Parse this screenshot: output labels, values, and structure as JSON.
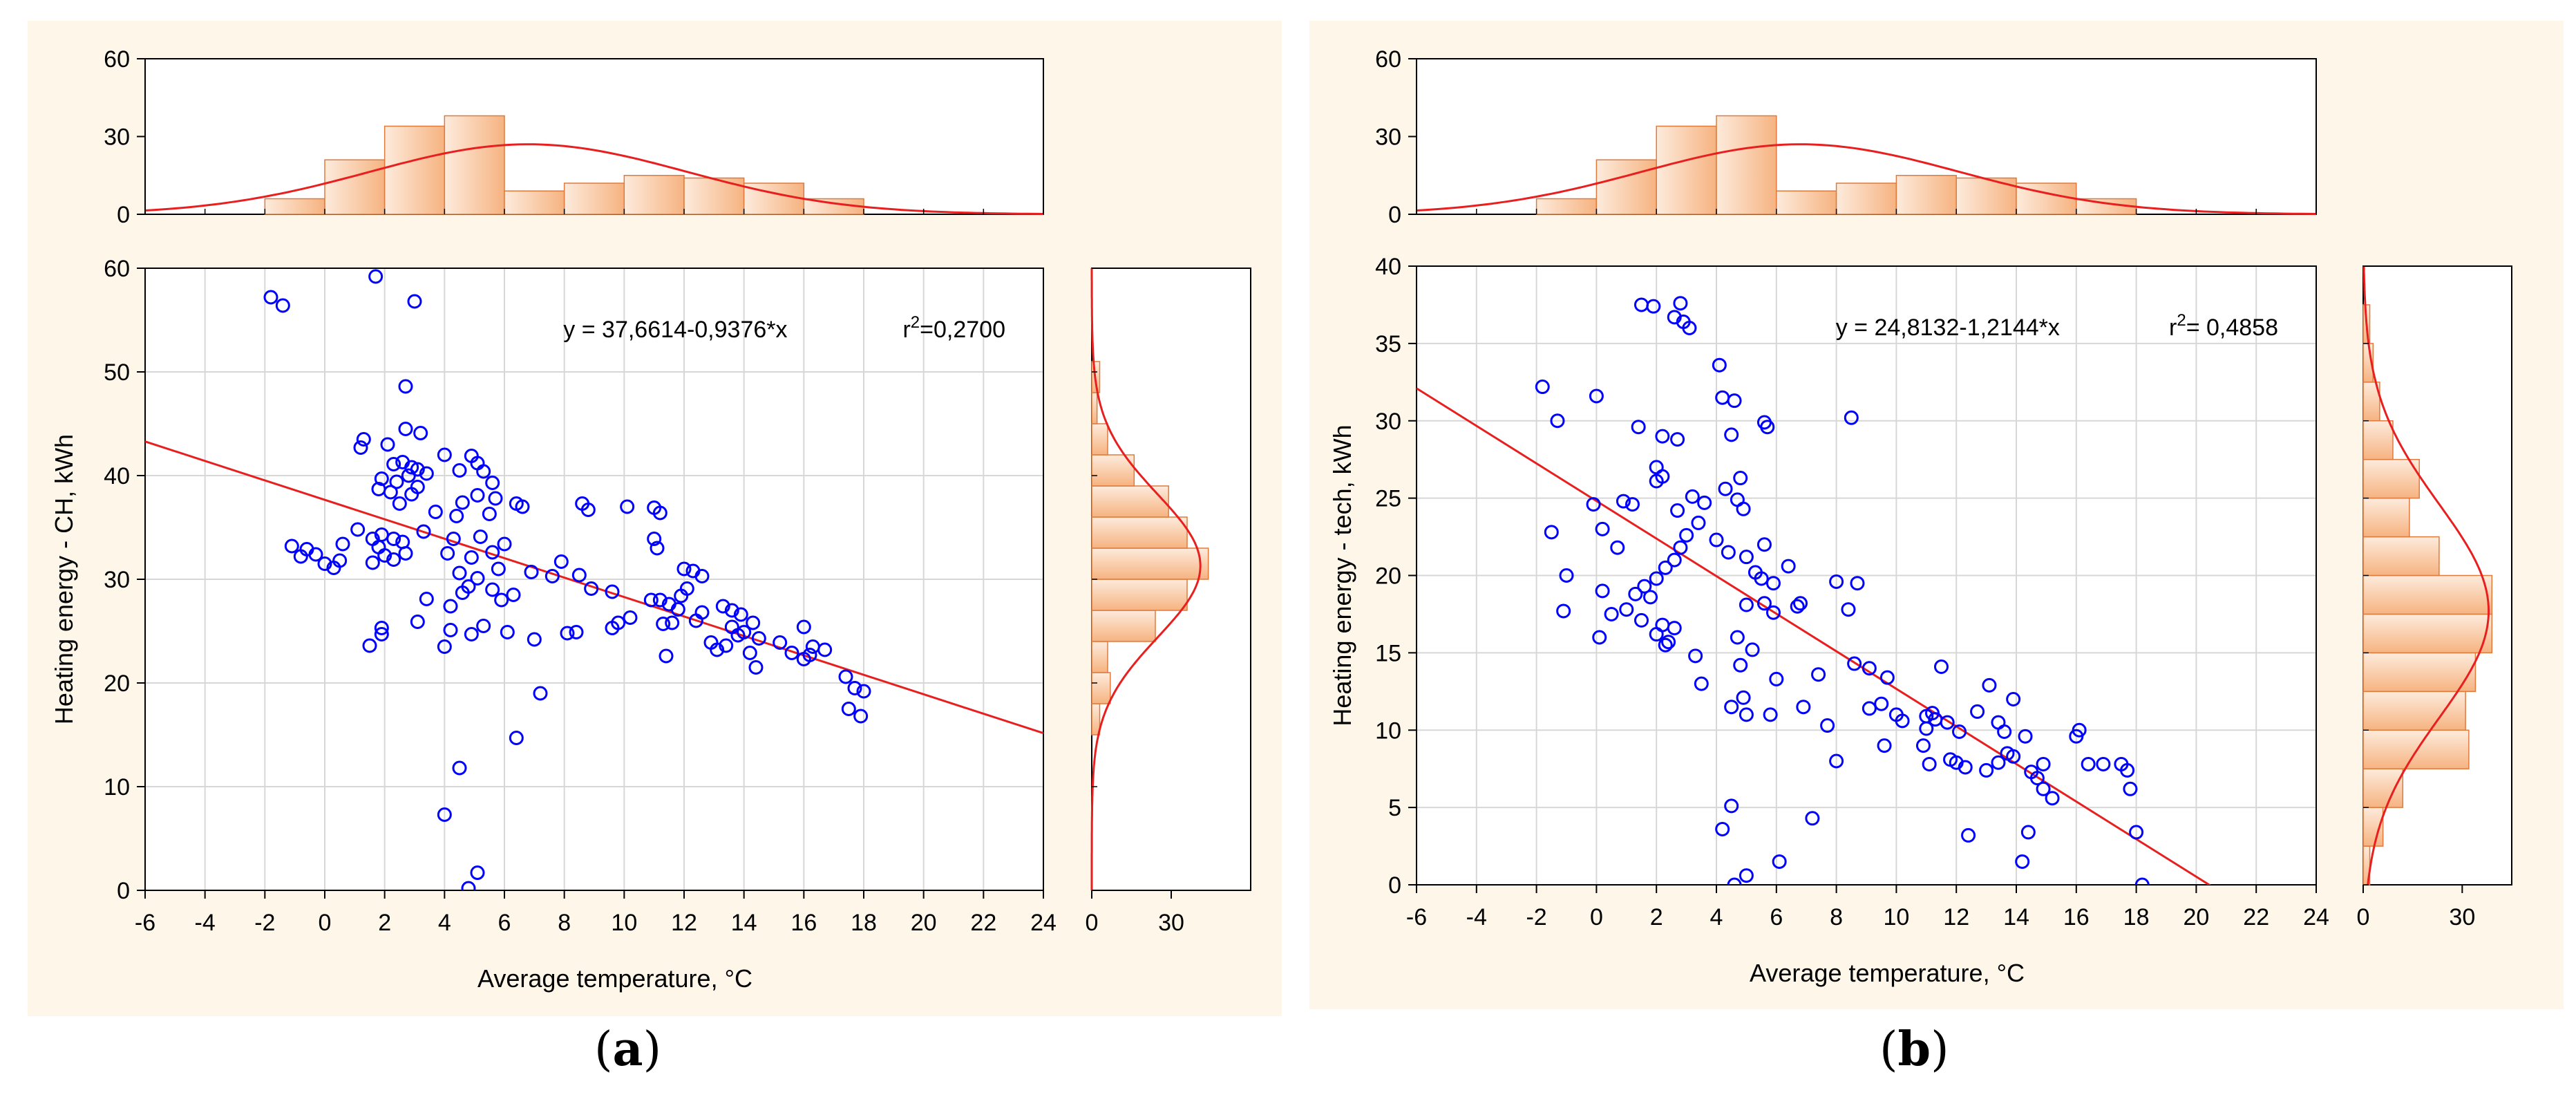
{
  "captions": [
    {
      "open": "(",
      "letter": "a",
      "close": ")"
    },
    {
      "open": "(",
      "letter": "b",
      "close": ")"
    }
  ],
  "colors": {
    "panel_background": "#FDF6E9",
    "plot_background": "#FFFFFF",
    "grid": "#D7D7D7",
    "points": "#0000FF",
    "fit_line": "#E81F1F",
    "histogram_fill": "#F6B381",
    "histogram_edge": "#E07A3C",
    "normal_curve": "#E81F1F"
  },
  "chart_data": [
    {
      "type": "scatter",
      "title": "(a)",
      "xlabel": "Average temperature, °C",
      "ylabel": "Heating energy - CH, kWh",
      "xlim": [
        -6,
        24
      ],
      "ylim": [
        0,
        60
      ],
      "xticks": [
        -6,
        -4,
        -2,
        0,
        2,
        4,
        6,
        8,
        10,
        12,
        14,
        16,
        18,
        20,
        22,
        24
      ],
      "yticks": [
        0,
        10,
        20,
        30,
        40,
        50,
        60
      ],
      "grid": true,
      "equation": "y = 37,6614-0,9376*x",
      "r2_label": "r",
      "r2_exp": "2",
      "r2_value": "=0,2700",
      "regression": {
        "intercept": 37.6614,
        "slope": -0.9376
      },
      "points": [
        [
          -1.8,
          57.2
        ],
        [
          -1.4,
          56.4
        ],
        [
          1.7,
          59.2
        ],
        [
          3.0,
          56.8
        ],
        [
          2.7,
          48.6
        ],
        [
          2.7,
          44.5
        ],
        [
          3.2,
          44.1
        ],
        [
          1.3,
          43.5
        ],
        [
          1.2,
          42.7
        ],
        [
          2.1,
          43.0
        ],
        [
          2.6,
          41.3
        ],
        [
          2.3,
          41.1
        ],
        [
          2.9,
          40.8
        ],
        [
          3.1,
          40.6
        ],
        [
          3.4,
          40.2
        ],
        [
          2.8,
          40.0
        ],
        [
          1.9,
          39.7
        ],
        [
          2.4,
          39.4
        ],
        [
          1.8,
          38.7
        ],
        [
          2.2,
          38.4
        ],
        [
          3.1,
          38.9
        ],
        [
          2.9,
          38.2
        ],
        [
          2.5,
          37.3
        ],
        [
          4.0,
          42.0
        ],
        [
          4.5,
          40.5
        ],
        [
          4.9,
          41.9
        ],
        [
          5.1,
          41.2
        ],
        [
          5.3,
          40.4
        ],
        [
          5.6,
          39.3
        ],
        [
          5.1,
          38.1
        ],
        [
          4.6,
          37.4
        ],
        [
          4.4,
          36.1
        ],
        [
          3.7,
          36.5
        ],
        [
          5.5,
          36.3
        ],
        [
          5.7,
          37.8
        ],
        [
          6.4,
          37.3
        ],
        [
          6.6,
          37.0
        ],
        [
          8.6,
          37.3
        ],
        [
          8.8,
          36.7
        ],
        [
          10.1,
          37.0
        ],
        [
          11.0,
          36.9
        ],
        [
          11.2,
          36.4
        ],
        [
          11.0,
          33.9
        ],
        [
          11.1,
          33.0
        ],
        [
          12.0,
          31.0
        ],
        [
          12.3,
          30.8
        ],
        [
          12.6,
          30.3
        ],
        [
          12.1,
          29.1
        ],
        [
          11.9,
          28.4
        ],
        [
          10.9,
          28.0
        ],
        [
          11.2,
          28.0
        ],
        [
          11.5,
          27.6
        ],
        [
          11.8,
          27.1
        ],
        [
          11.3,
          25.7
        ],
        [
          11.6,
          25.8
        ],
        [
          11.4,
          22.6
        ],
        [
          12.6,
          26.8
        ],
        [
          12.4,
          26.0
        ],
        [
          13.3,
          27.4
        ],
        [
          13.6,
          27.0
        ],
        [
          13.9,
          26.6
        ],
        [
          14.3,
          25.8
        ],
        [
          13.6,
          25.4
        ],
        [
          14.0,
          24.9
        ],
        [
          13.8,
          24.6
        ],
        [
          14.5,
          24.3
        ],
        [
          13.4,
          23.6
        ],
        [
          12.9,
          23.9
        ],
        [
          13.1,
          23.2
        ],
        [
          14.2,
          22.9
        ],
        [
          14.4,
          21.5
        ],
        [
          15.2,
          23.9
        ],
        [
          15.6,
          22.9
        ],
        [
          16.0,
          22.3
        ],
        [
          16.2,
          22.7
        ],
        [
          16.0,
          25.4
        ],
        [
          16.3,
          23.5
        ],
        [
          16.7,
          23.2
        ],
        [
          17.4,
          20.6
        ],
        [
          17.7,
          19.5
        ],
        [
          18.0,
          19.2
        ],
        [
          17.5,
          17.5
        ],
        [
          17.9,
          16.8
        ],
        [
          -1.1,
          33.2
        ],
        [
          -0.6,
          32.9
        ],
        [
          -0.8,
          32.2
        ],
        [
          -0.3,
          32.4
        ],
        [
          0.0,
          31.5
        ],
        [
          0.3,
          31.1
        ],
        [
          0.5,
          31.8
        ],
        [
          0.6,
          33.4
        ],
        [
          1.1,
          34.8
        ],
        [
          1.6,
          33.9
        ],
        [
          1.9,
          34.3
        ],
        [
          2.3,
          33.9
        ],
        [
          2.6,
          33.6
        ],
        [
          2.0,
          32.3
        ],
        [
          1.6,
          31.6
        ],
        [
          2.3,
          31.9
        ],
        [
          1.8,
          33.1
        ],
        [
          2.7,
          32.5
        ],
        [
          3.3,
          34.6
        ],
        [
          4.3,
          33.9
        ],
        [
          5.2,
          34.1
        ],
        [
          4.1,
          32.5
        ],
        [
          4.9,
          32.1
        ],
        [
          5.6,
          32.6
        ],
        [
          4.5,
          30.6
        ],
        [
          5.1,
          30.1
        ],
        [
          4.8,
          29.3
        ],
        [
          5.8,
          31.0
        ],
        [
          6.0,
          33.4
        ],
        [
          3.4,
          28.1
        ],
        [
          4.2,
          27.4
        ],
        [
          4.6,
          28.7
        ],
        [
          5.6,
          29.0
        ],
        [
          5.9,
          28.0
        ],
        [
          6.3,
          28.5
        ],
        [
          6.9,
          30.7
        ],
        [
          7.6,
          30.3
        ],
        [
          7.9,
          31.7
        ],
        [
          8.5,
          30.4
        ],
        [
          8.9,
          29.1
        ],
        [
          9.6,
          28.8
        ],
        [
          10.2,
          26.3
        ],
        [
          9.8,
          25.8
        ],
        [
          9.6,
          25.3
        ],
        [
          8.1,
          24.8
        ],
        [
          8.4,
          24.9
        ],
        [
          7.0,
          24.2
        ],
        [
          6.1,
          24.9
        ],
        [
          4.2,
          25.1
        ],
        [
          4.9,
          24.7
        ],
        [
          5.3,
          25.5
        ],
        [
          4.0,
          23.5
        ],
        [
          3.1,
          25.9
        ],
        [
          1.9,
          24.7
        ],
        [
          1.9,
          25.3
        ],
        [
          1.5,
          23.6
        ],
        [
          6.4,
          14.7
        ],
        [
          7.2,
          19.0
        ],
        [
          4.5,
          11.8
        ],
        [
          4.0,
          7.3
        ],
        [
          5.1,
          1.7
        ],
        [
          4.8,
          0.2
        ]
      ]
    },
    {
      "type": "histogram",
      "role": "top-marginal",
      "xlim": [
        -6,
        24
      ],
      "ylim": [
        0,
        60
      ],
      "yticks": [
        0,
        30,
        60
      ],
      "bin_edges": [
        -2,
        0,
        2,
        4,
        6,
        8,
        10,
        12,
        14,
        16,
        18
      ],
      "counts": [
        6,
        21,
        34,
        38,
        9,
        12,
        15,
        14,
        12,
        6
      ],
      "normal_curve": {
        "mean": 6.8,
        "sd": 5.3,
        "peak": 27
      }
    },
    {
      "type": "histogram",
      "role": "right-marginal",
      "orientation": "horizontal",
      "ylim": [
        0,
        60
      ],
      "xlim": [
        0,
        60
      ],
      "xticks": [
        0,
        30
      ],
      "bin_edges": [
        15,
        18,
        21,
        24,
        27,
        30,
        33,
        36,
        39,
        42,
        45,
        48,
        51
      ],
      "counts": [
        3,
        7,
        6,
        24,
        36,
        44,
        36,
        29,
        16,
        6,
        2,
        3
      ],
      "normal_curve": {
        "mean": 31.3,
        "sd": 6.9,
        "peak": 41
      }
    },
    {
      "type": "scatter",
      "title": "(b)",
      "xlabel": "Average temperature, °C",
      "ylabel": "Heating energy - tech, kWh",
      "xlim": [
        -6,
        24
      ],
      "ylim": [
        0,
        40
      ],
      "xticks": [
        -6,
        -4,
        -2,
        0,
        2,
        4,
        6,
        8,
        10,
        12,
        14,
        16,
        18,
        20,
        22,
        24
      ],
      "yticks": [
        0,
        5,
        10,
        15,
        20,
        25,
        30,
        35,
        40
      ],
      "grid": true,
      "equation": "y = 24,8132-1,2144*x",
      "r2_label": "r",
      "r2_exp": "2",
      "r2_value": "= 0,4858",
      "regression": {
        "intercept": 24.8132,
        "slope": -1.2144
      },
      "points": [
        [
          -1.8,
          32.2
        ],
        [
          -1.3,
          30.0
        ],
        [
          0.0,
          31.6
        ],
        [
          1.4,
          29.6
        ],
        [
          2.0,
          27.0
        ],
        [
          2.2,
          26.4
        ],
        [
          2.0,
          26.1
        ],
        [
          2.7,
          28.8
        ],
        [
          2.2,
          29.0
        ],
        [
          1.5,
          37.5
        ],
        [
          1.9,
          37.4
        ],
        [
          2.6,
          36.7
        ],
        [
          2.8,
          37.6
        ],
        [
          2.9,
          36.4
        ],
        [
          3.1,
          36.0
        ],
        [
          4.1,
          33.6
        ],
        [
          4.2,
          31.5
        ],
        [
          4.6,
          31.3
        ],
        [
          4.5,
          29.1
        ],
        [
          5.6,
          29.9
        ],
        [
          5.7,
          29.6
        ],
        [
          8.5,
          30.2
        ],
        [
          -1.5,
          22.8
        ],
        [
          -1.0,
          20.0
        ],
        [
          -1.1,
          17.7
        ],
        [
          -0.1,
          24.6
        ],
        [
          0.2,
          23.0
        ],
        [
          0.7,
          21.8
        ],
        [
          0.9,
          24.8
        ],
        [
          1.2,
          24.6
        ],
        [
          0.2,
          19.0
        ],
        [
          0.1,
          16.0
        ],
        [
          0.5,
          17.5
        ],
        [
          1.0,
          17.8
        ],
        [
          1.3,
          18.8
        ],
        [
          1.6,
          19.3
        ],
        [
          1.8,
          18.6
        ],
        [
          1.5,
          17.1
        ],
        [
          2.0,
          16.2
        ],
        [
          2.2,
          16.8
        ],
        [
          2.4,
          15.7
        ],
        [
          2.6,
          16.6
        ],
        [
          2.0,
          19.8
        ],
        [
          2.3,
          20.5
        ],
        [
          2.6,
          21.0
        ],
        [
          2.8,
          21.8
        ],
        [
          3.0,
          22.6
        ],
        [
          2.7,
          24.2
        ],
        [
          3.2,
          25.1
        ],
        [
          3.6,
          24.7
        ],
        [
          3.4,
          23.4
        ],
        [
          4.0,
          22.3
        ],
        [
          4.3,
          25.6
        ],
        [
          4.7,
          24.9
        ],
        [
          4.9,
          24.3
        ],
        [
          4.8,
          26.3
        ],
        [
          4.4,
          21.5
        ],
        [
          5.0,
          21.2
        ],
        [
          5.6,
          22.0
        ],
        [
          5.3,
          20.2
        ],
        [
          5.5,
          19.8
        ],
        [
          5.9,
          19.5
        ],
        [
          5.0,
          18.1
        ],
        [
          5.6,
          18.2
        ],
        [
          5.9,
          17.6
        ],
        [
          4.7,
          16.0
        ],
        [
          5.2,
          15.2
        ],
        [
          4.8,
          14.2
        ],
        [
          4.9,
          12.1
        ],
        [
          4.5,
          11.5
        ],
        [
          5.0,
          11.0
        ],
        [
          5.8,
          11.0
        ],
        [
          6.0,
          13.3
        ],
        [
          6.4,
          20.6
        ],
        [
          6.7,
          18.0
        ],
        [
          6.8,
          18.2
        ],
        [
          7.4,
          13.6
        ],
        [
          8.0,
          19.6
        ],
        [
          8.4,
          17.8
        ],
        [
          8.7,
          19.5
        ],
        [
          8.6,
          14.3
        ],
        [
          9.1,
          14.0
        ],
        [
          9.5,
          11.7
        ],
        [
          9.7,
          13.4
        ],
        [
          10.0,
          11.0
        ],
        [
          10.2,
          10.6
        ],
        [
          11.0,
          10.9
        ],
        [
          11.2,
          11.1
        ],
        [
          11.5,
          14.1
        ],
        [
          11.0,
          10.1
        ],
        [
          11.3,
          10.7
        ],
        [
          11.7,
          10.5
        ],
        [
          12.1,
          9.9
        ],
        [
          11.8,
          8.1
        ],
        [
          12.0,
          7.9
        ],
        [
          12.3,
          7.6
        ],
        [
          12.7,
          11.2
        ],
        [
          13.1,
          12.9
        ],
        [
          13.4,
          10.5
        ],
        [
          13.6,
          9.9
        ],
        [
          13.9,
          12.0
        ],
        [
          14.3,
          9.6
        ],
        [
          13.7,
          8.5
        ],
        [
          13.9,
          8.3
        ],
        [
          13.0,
          7.4
        ],
        [
          13.4,
          7.9
        ],
        [
          14.5,
          7.3
        ],
        [
          14.9,
          7.8
        ],
        [
          14.7,
          6.9
        ],
        [
          14.9,
          6.2
        ],
        [
          15.2,
          5.6
        ],
        [
          16.0,
          9.6
        ],
        [
          16.1,
          10.0
        ],
        [
          16.4,
          7.8
        ],
        [
          16.9,
          7.8
        ],
        [
          17.5,
          7.8
        ],
        [
          17.7,
          7.4
        ],
        [
          17.8,
          6.2
        ],
        [
          18.0,
          3.4
        ],
        [
          18.2,
          0.0
        ],
        [
          11.1,
          7.8
        ],
        [
          10.9,
          9.0
        ],
        [
          9.6,
          9.0
        ],
        [
          9.1,
          11.4
        ],
        [
          8.0,
          8.0
        ],
        [
          7.7,
          10.3
        ],
        [
          6.9,
          11.5
        ],
        [
          7.2,
          4.3
        ],
        [
          6.1,
          1.5
        ],
        [
          3.3,
          14.8
        ],
        [
          3.5,
          13.0
        ],
        [
          2.3,
          15.5
        ],
        [
          4.5,
          5.1
        ],
        [
          5.0,
          0.6
        ],
        [
          4.6,
          0.0
        ],
        [
          4.2,
          3.6
        ],
        [
          14.2,
          1.5
        ],
        [
          14.4,
          3.4
        ],
        [
          12.4,
          3.2
        ]
      ]
    },
    {
      "type": "histogram",
      "role": "top-marginal",
      "xlim": [
        -6,
        24
      ],
      "ylim": [
        0,
        60
      ],
      "yticks": [
        0,
        30,
        60
      ],
      "bin_edges": [
        -2,
        0,
        2,
        4,
        6,
        8,
        10,
        12,
        14,
        16,
        18
      ],
      "counts": [
        6,
        21,
        34,
        38,
        9,
        12,
        15,
        14,
        12,
        6
      ],
      "normal_curve": {
        "mean": 6.8,
        "sd": 5.3,
        "peak": 27
      }
    },
    {
      "type": "histogram",
      "role": "right-marginal",
      "orientation": "horizontal",
      "ylim": [
        0,
        40
      ],
      "xlim": [
        0,
        45
      ],
      "xticks": [
        0,
        30
      ],
      "bin_edges": [
        0,
        2.5,
        5,
        7.5,
        10,
        12.5,
        15,
        17.5,
        20,
        22.5,
        25,
        27.5,
        30,
        32.5,
        35,
        37.5
      ],
      "counts": [
        2,
        6,
        12,
        32,
        31,
        34,
        39,
        39,
        23,
        14,
        17,
        9,
        5,
        3,
        2
      ],
      "normal_curve": {
        "mean": 17.7,
        "sd": 6.9,
        "peak": 38
      }
    }
  ]
}
